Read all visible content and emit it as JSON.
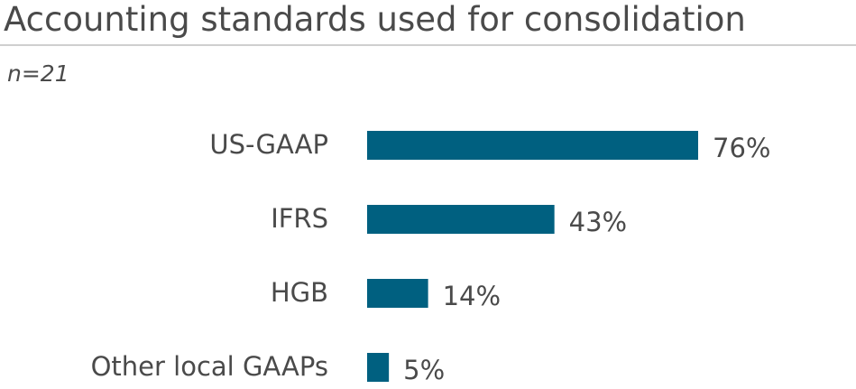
{
  "header": {
    "title": "Accounting standards used for consolidation",
    "subtitle": "n=21"
  },
  "colors": {
    "bar": "#006080",
    "text": "#4a4a4a",
    "rule": "#cfcfcf"
  },
  "chart_data": {
    "type": "bar",
    "orientation": "horizontal",
    "title": "Accounting standards used for consolidation",
    "subtitle": "n=21",
    "categories": [
      "US-GAAP",
      "IFRS",
      "HGB",
      "Other local GAAPs"
    ],
    "values": [
      76,
      43,
      14,
      5
    ],
    "value_labels": [
      "76%",
      "43%",
      "14%",
      "5%"
    ],
    "unit": "%",
    "xlim": [
      0,
      100
    ],
    "grid": false,
    "legend": "none"
  }
}
